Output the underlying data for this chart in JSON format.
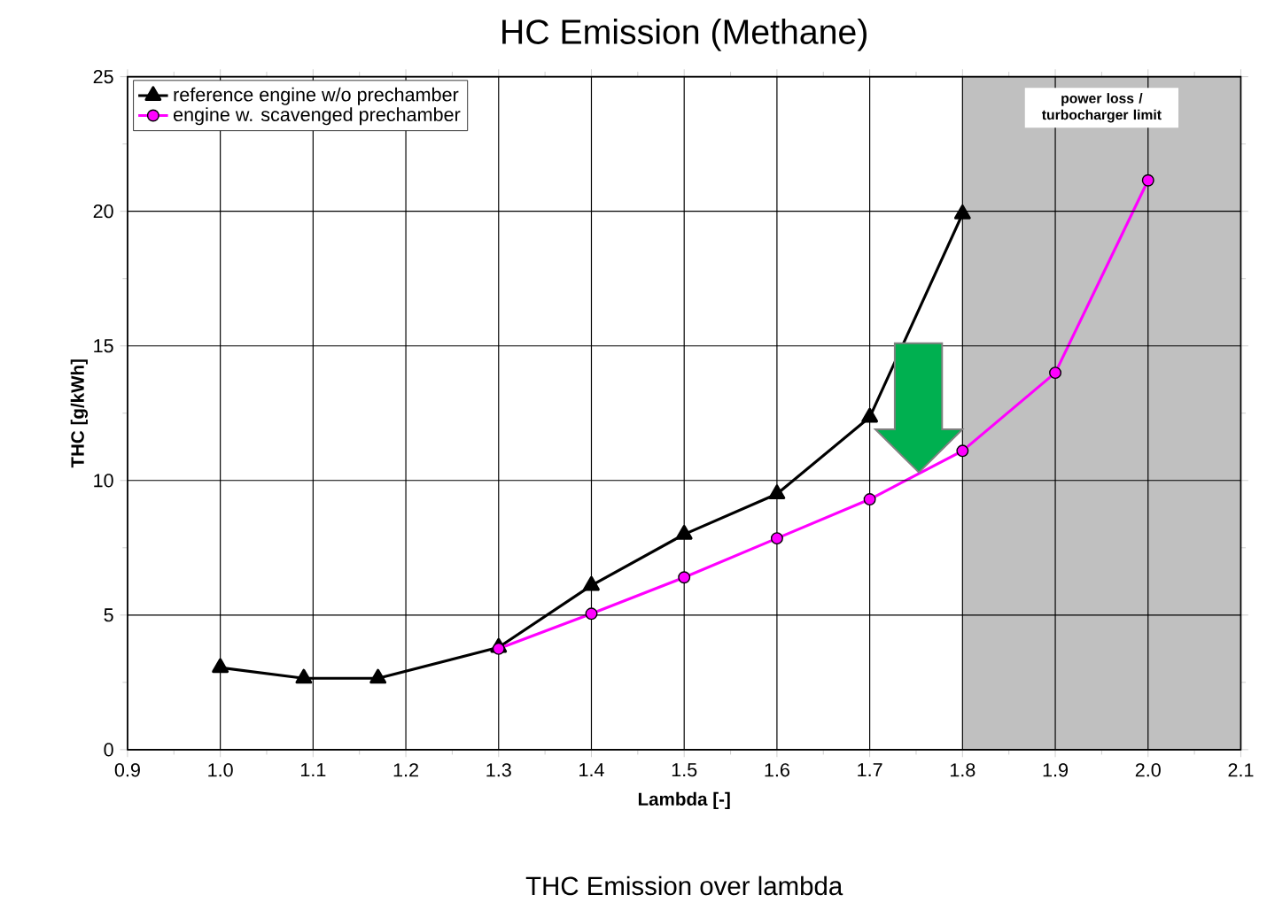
{
  "chart_data": {
    "type": "line",
    "title": "HC Emission (Methane)",
    "xlabel": "Lambda [-]",
    "ylabel": "THC  [g/kWh]",
    "annotations": [
      "THC Emission over lambda"
    ],
    "xlim": [
      0.9,
      2.1
    ],
    "xticks": [
      {
        "value": 0.9,
        "label": "0.9"
      },
      {
        "value": 1.0,
        "label": "1.0"
      },
      {
        "value": 1.1,
        "label": "1.1"
      },
      {
        "value": 1.2,
        "label": "1.2"
      },
      {
        "value": 1.3,
        "label": "1.3"
      },
      {
        "value": 1.4,
        "label": "1.4"
      },
      {
        "value": 1.5,
        "label": "1.5"
      },
      {
        "value": 1.6,
        "label": "1.6"
      },
      {
        "value": 1.7,
        "label": "1.7"
      },
      {
        "value": 1.8,
        "label": "1.8"
      },
      {
        "value": 1.9,
        "label": "1.9"
      },
      {
        "value": 2.0,
        "label": "2.0"
      },
      {
        "value": 2.1,
        "label": "2.1"
      }
    ],
    "ylim": [
      0,
      25
    ],
    "yticks": [
      0,
      5,
      10,
      15,
      20,
      25
    ],
    "grid": true,
    "legend": "top left",
    "bands": [
      {
        "axis": "x",
        "from": 1.8,
        "to": 2.1,
        "label": "power loss / turbocharger limit",
        "color": "#c0c0c0"
      }
    ],
    "series": [
      {
        "name": "reference engine w/o prechamber",
        "color": "#000000",
        "marker": "triangle",
        "x": [
          1.0,
          1.09,
          1.17,
          1.3,
          1.4,
          1.5,
          1.6,
          1.7,
          1.8
        ],
        "values": [
          3.05,
          2.65,
          2.65,
          3.8,
          6.1,
          8.0,
          9.5,
          12.35,
          19.9
        ]
      },
      {
        "name": "engine w. scavenged prechamber",
        "color": "#ff00ff",
        "marker": "circle",
        "x": [
          1.3,
          1.4,
          1.5,
          1.6,
          1.7,
          1.8,
          1.9,
          2.0
        ],
        "values": [
          3.75,
          5.05,
          6.4,
          7.85,
          9.3,
          11.1,
          14.0,
          21.15
        ]
      }
    ]
  }
}
